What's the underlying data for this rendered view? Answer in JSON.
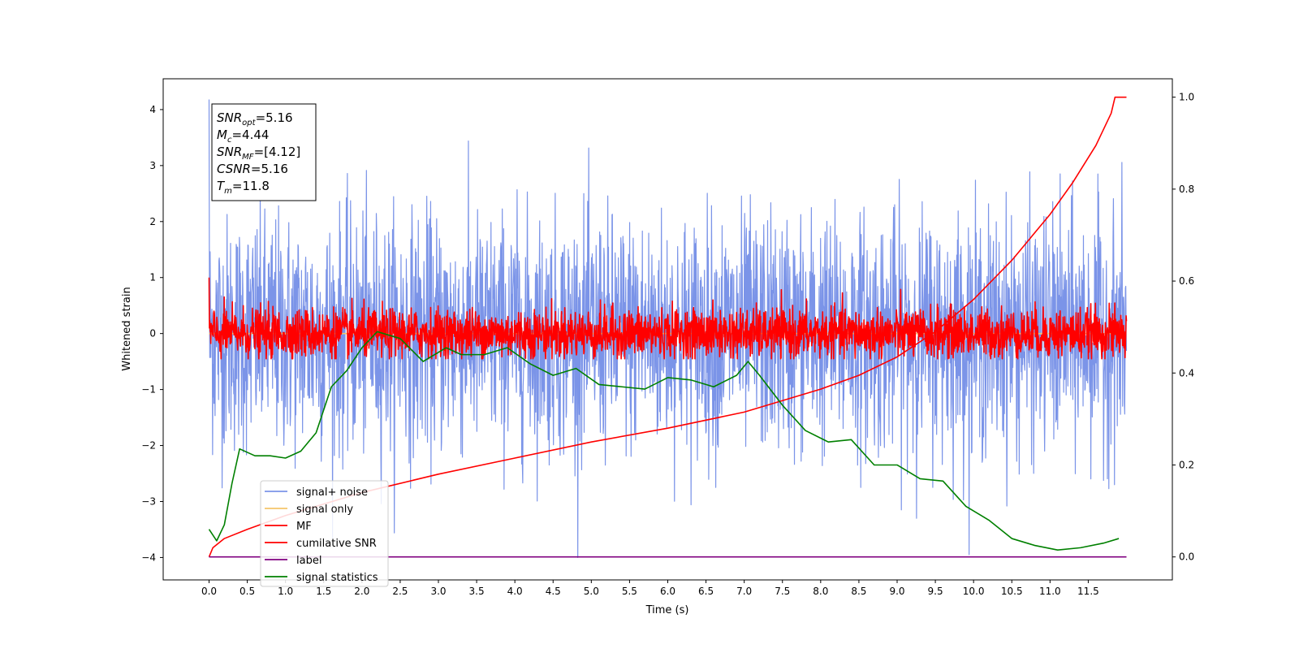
{
  "chart_data": {
    "type": "line",
    "title": "",
    "xlabel": "Time (s)",
    "ylabel": "Whitened strain",
    "y2label": "",
    "xlim": [
      -0.6,
      12.6
    ],
    "ylim": [
      -4.4,
      4.55
    ],
    "y2lim": [
      -0.05,
      1.04
    ],
    "x_ticks": [
      "0.0",
      "0.5",
      "1.0",
      "1.5",
      "2.0",
      "2.5",
      "3.0",
      "3.5",
      "4.0",
      "4.5",
      "5.0",
      "5.5",
      "6.0",
      "6.5",
      "7.0",
      "7.5",
      "8.0",
      "8.5",
      "9.0",
      "9.5",
      "10.0",
      "10.5",
      "11.0",
      "11.5"
    ],
    "y_ticks": [
      "4",
      "3",
      "2",
      "1",
      "0",
      "−1",
      "−2",
      "−3",
      "−4"
    ],
    "y2_ticks": [
      "1.0",
      "0.8",
      "0.6",
      "0.4",
      "0.2",
      "0.0"
    ],
    "grid": false,
    "legend_position": "lower-left",
    "annotation": [
      {
        "base": "SNR",
        "sub": "opt",
        "rest": "=5.16"
      },
      {
        "base": "M",
        "sub": "c",
        "rest": "=4.44"
      },
      {
        "base": "SNR",
        "sub": "MF",
        "rest": "=[4.12]"
      },
      {
        "base": "CSNR",
        "sub": "",
        "rest": "=5.16"
      },
      {
        "base": "T",
        "sub": "m",
        "rest": "=11.8"
      }
    ],
    "series": [
      {
        "name": "signal+ noise",
        "color": "#7b94e8",
        "axis": "left",
        "style": "noise",
        "x_range": [
          0,
          12
        ],
        "mean": 0.0,
        "std": 1.05,
        "min": -4.0,
        "max": 4.18
      },
      {
        "name": "signal only",
        "color": "#f5c46a",
        "axis": "left",
        "style": "flat",
        "x_range": [
          0,
          12
        ],
        "value": 0.0
      },
      {
        "name": "MF",
        "color": "#ff0000",
        "axis": "left",
        "style": "noise",
        "x_range": [
          0,
          12
        ],
        "mean": 0.0,
        "std": 0.22,
        "min": -0.45,
        "max": 1.0
      },
      {
        "name": "cumilative SNR",
        "color": "#ff0000",
        "axis": "right",
        "style": "line",
        "x": [
          0.0,
          0.05,
          0.2,
          0.5,
          1.0,
          2.0,
          3.0,
          4.0,
          5.0,
          6.0,
          7.0,
          8.0,
          8.5,
          9.0,
          9.5,
          10.0,
          10.5,
          11.0,
          11.3,
          11.6,
          11.8,
          11.85,
          12.0
        ],
        "y": [
          0.0,
          0.02,
          0.04,
          0.06,
          0.09,
          0.14,
          0.18,
          0.215,
          0.25,
          0.28,
          0.315,
          0.365,
          0.395,
          0.435,
          0.49,
          0.56,
          0.645,
          0.745,
          0.815,
          0.895,
          0.965,
          1.0,
          1.0
        ]
      },
      {
        "name": "label",
        "color": "#800080",
        "axis": "right",
        "style": "line",
        "x": [
          0.0,
          12.0
        ],
        "y": [
          0.0,
          0.0
        ]
      },
      {
        "name": "signal statistics",
        "color": "#008000",
        "axis": "right",
        "style": "line",
        "x": [
          0.0,
          0.1,
          0.2,
          0.3,
          0.4,
          0.6,
          0.8,
          1.0,
          1.2,
          1.4,
          1.6,
          1.8,
          2.0,
          2.2,
          2.5,
          2.8,
          3.1,
          3.3,
          3.6,
          3.9,
          4.2,
          4.5,
          4.8,
          5.1,
          5.4,
          5.7,
          6.0,
          6.3,
          6.6,
          6.9,
          7.05,
          7.2,
          7.5,
          7.8,
          8.1,
          8.4,
          8.7,
          9.0,
          9.3,
          9.6,
          9.9,
          10.2,
          10.5,
          10.8,
          11.1,
          11.4,
          11.7,
          11.9
        ],
        "y": [
          0.06,
          0.035,
          0.07,
          0.16,
          0.235,
          0.22,
          0.22,
          0.215,
          0.23,
          0.27,
          0.37,
          0.405,
          0.455,
          0.49,
          0.475,
          0.425,
          0.455,
          0.44,
          0.44,
          0.455,
          0.42,
          0.395,
          0.41,
          0.375,
          0.37,
          0.365,
          0.39,
          0.385,
          0.37,
          0.395,
          0.425,
          0.395,
          0.33,
          0.275,
          0.25,
          0.255,
          0.2,
          0.2,
          0.17,
          0.165,
          0.11,
          0.08,
          0.04,
          0.025,
          0.015,
          0.02,
          0.03,
          0.04
        ]
      }
    ]
  }
}
